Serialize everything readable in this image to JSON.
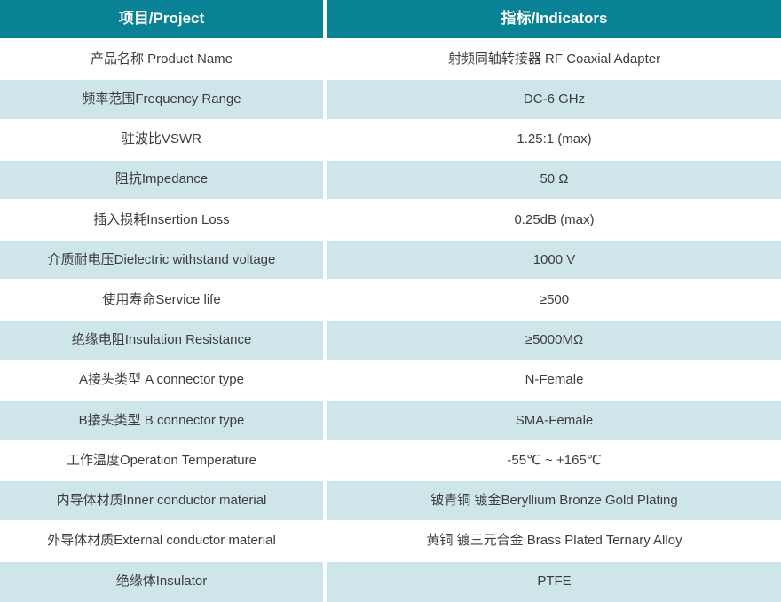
{
  "table": {
    "header": {
      "project": "项目/Project",
      "indicators": "指标/Indicators"
    },
    "rows": [
      {
        "project": "产品名称 Product Name",
        "indicator": "射频同轴转接器 RF Coaxial Adapter"
      },
      {
        "project": "频率范围Frequency Range",
        "indicator": "DC-6 GHz"
      },
      {
        "project": "驻波比VSWR",
        "indicator": "1.25:1 (max)"
      },
      {
        "project": "阻抗Impedance",
        "indicator": "50 Ω"
      },
      {
        "project": "插入损耗Insertion Loss",
        "indicator": "0.25dB (max)"
      },
      {
        "project": "介质耐电压Dielectric withstand voltage",
        "indicator": "1000 V"
      },
      {
        "project": "使用寿命Service life",
        "indicator": "≥500"
      },
      {
        "project": "绝缘电阻Insulation Resistance",
        "indicator": "≥5000MΩ"
      },
      {
        "project": "A接头类型 A connector type",
        "indicator": "N-Female"
      },
      {
        "project": "B接头类型 B connector type",
        "indicator": "SMA-Female"
      },
      {
        "project": "工作温度Operation Temperature",
        "indicator": "-55℃ ~ +165℃"
      },
      {
        "project": "内导体材质Inner conductor material",
        "indicator": "铍青铜 镀金Beryllium Bronze Gold Plating"
      },
      {
        "project": "外导体材质External conductor material",
        "indicator": "黄铜 镀三元合金 Brass Plated Ternary Alloy"
      },
      {
        "project": "绝缘体Insulator",
        "indicator": "PTFE"
      }
    ]
  },
  "colors": {
    "header_bg": "#088294",
    "header_text": "#ffffff",
    "alt_row_bg": "#cee6ea",
    "row_bg": "#ffffff",
    "body_text": "#3d3d3d"
  }
}
